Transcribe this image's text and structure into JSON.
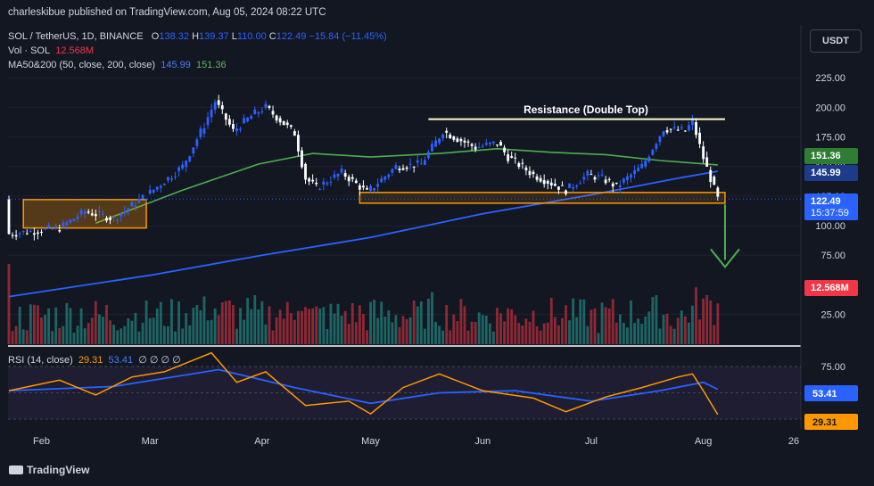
{
  "publisher": "charleskibue published on TradingView.com, Aug 05, 2024 08:22 UTC",
  "legend": {
    "symbol": "SOL / TetherUS, 1D, BINANCE",
    "o_label": "O",
    "o": "138.32",
    "h_label": "H",
    "h": "139.37",
    "l_label": "L",
    "l": "110.00",
    "c_label": "C",
    "c": "122.49",
    "change": "−15.84 (−11.45%)",
    "vol_label": "Vol · SOL",
    "vol": "12.568M",
    "ma_label": "MA50&200 (50, close, 200, close)",
    "ma50": "145.99",
    "ma200": "151.36"
  },
  "currency_button": "USDT",
  "annotation": "Resistance (Double Top)",
  "price_tags": {
    "ma200": "151.36",
    "ma50": "145.99",
    "last": "122.49",
    "countdown": "15:37:59",
    "volume": "12.568M"
  },
  "rsi_legend": {
    "label": "RSI (14, close)",
    "rsi": "29.31",
    "ma": "53.41",
    "extra": "∅ ∅ ∅ ∅"
  },
  "rsi_tags": {
    "ma": "53.41",
    "rsi": "29.31"
  },
  "brand": "TradingView",
  "colors": {
    "up": "#26a69a",
    "down": "#f23645",
    "candle_up": "#2962ff",
    "ma50": "#2962ff",
    "ma200": "#4caf50",
    "rsi": "#ff9800",
    "rsi_ma": "#2962ff",
    "box": "#ff9800",
    "resistance": "#ffffcc",
    "arrow": "#4caf50"
  },
  "chart_data": {
    "type": "candlestick",
    "price_axis_ticks": [
      "225.00",
      "200.00",
      "175.00",
      "150.00",
      "125.00",
      "100.00",
      "75.00",
      "25.00"
    ],
    "rsi_axis_ticks": [
      "75.00",
      "25.00"
    ],
    "x_ticks": [
      "Feb",
      "Mar",
      "Apr",
      "May",
      "Jun",
      "Jul",
      "Aug",
      "26"
    ],
    "ylim": [
      20,
      240
    ],
    "close_path": [
      {
        "d": "2024-01-22",
        "v": 93
      },
      {
        "d": "2024-02-05",
        "v": 98
      },
      {
        "d": "2024-02-12",
        "v": 112
      },
      {
        "d": "2024-02-20",
        "v": 106
      },
      {
        "d": "2024-03-01",
        "v": 128
      },
      {
        "d": "2024-03-10",
        "v": 150
      },
      {
        "d": "2024-03-16",
        "v": 185
      },
      {
        "d": "2024-03-19",
        "v": 205
      },
      {
        "d": "2024-03-24",
        "v": 180
      },
      {
        "d": "2024-03-30",
        "v": 195
      },
      {
        "d": "2024-04-02",
        "v": 200
      },
      {
        "d": "2024-04-10",
        "v": 178
      },
      {
        "d": "2024-04-13",
        "v": 140
      },
      {
        "d": "2024-04-16",
        "v": 132
      },
      {
        "d": "2024-04-23",
        "v": 145
      },
      {
        "d": "2024-04-30",
        "v": 128
      },
      {
        "d": "2024-05-08",
        "v": 150
      },
      {
        "d": "2024-05-15",
        "v": 152
      },
      {
        "d": "2024-05-21",
        "v": 180
      },
      {
        "d": "2024-05-24",
        "v": 175
      },
      {
        "d": "2024-05-30",
        "v": 166
      },
      {
        "d": "2024-06-05",
        "v": 170
      },
      {
        "d": "2024-06-08",
        "v": 158
      },
      {
        "d": "2024-06-15",
        "v": 143
      },
      {
        "d": "2024-06-24",
        "v": 130
      },
      {
        "d": "2024-06-30",
        "v": 143
      },
      {
        "d": "2024-07-04",
        "v": 140
      },
      {
        "d": "2024-07-08",
        "v": 133
      },
      {
        "d": "2024-07-15",
        "v": 150
      },
      {
        "d": "2024-07-21",
        "v": 182
      },
      {
        "d": "2024-07-27",
        "v": 180
      },
      {
        "d": "2024-07-29",
        "v": 188
      },
      {
        "d": "2024-08-01",
        "v": 157
      },
      {
        "d": "2024-08-05",
        "v": 122.49
      }
    ],
    "ma50_path": [
      {
        "d": "2024-01-22",
        "v": 40
      },
      {
        "d": "2024-03-01",
        "v": 58
      },
      {
        "d": "2024-04-01",
        "v": 75
      },
      {
        "d": "2024-05-01",
        "v": 90
      },
      {
        "d": "2024-06-01",
        "v": 110
      },
      {
        "d": "2024-07-01",
        "v": 126
      },
      {
        "d": "2024-07-25",
        "v": 140
      },
      {
        "d": "2024-08-05",
        "v": 145.99
      }
    ],
    "ma200_path": [
      {
        "d": "2024-02-15",
        "v": 102
      },
      {
        "d": "2024-03-10",
        "v": 130
      },
      {
        "d": "2024-03-31",
        "v": 152
      },
      {
        "d": "2024-04-15",
        "v": 161
      },
      {
        "d": "2024-05-01",
        "v": 158
      },
      {
        "d": "2024-05-20",
        "v": 161
      },
      {
        "d": "2024-06-05",
        "v": 165
      },
      {
        "d": "2024-06-20",
        "v": 162
      },
      {
        "d": "2024-07-05",
        "v": 160
      },
      {
        "d": "2024-07-20",
        "v": 155
      },
      {
        "d": "2024-08-05",
        "v": 151.36
      }
    ],
    "resistance": {
      "from": "2024-05-17",
      "to": "2024-08-07",
      "price": 190
    },
    "support_zone": {
      "from": "2024-04-28",
      "to": "2024-08-07",
      "low": 119,
      "high": 128
    },
    "accumulation_box": {
      "from": "2024-01-26",
      "to": "2024-02-29",
      "low": 98,
      "high": 122
    },
    "target_arrow": {
      "date": "2024-08-07",
      "from": 118,
      "to": 65
    },
    "rsi_path": [
      {
        "d": "2024-01-22",
        "v": 52
      },
      {
        "d": "2024-02-05",
        "v": 62
      },
      {
        "d": "2024-02-15",
        "v": 48
      },
      {
        "d": "2024-02-25",
        "v": 65
      },
      {
        "d": "2024-03-05",
        "v": 70
      },
      {
        "d": "2024-03-18",
        "v": 88
      },
      {
        "d": "2024-03-25",
        "v": 60
      },
      {
        "d": "2024-04-02",
        "v": 70
      },
      {
        "d": "2024-04-13",
        "v": 38
      },
      {
        "d": "2024-04-25",
        "v": 42
      },
      {
        "d": "2024-05-01",
        "v": 30
      },
      {
        "d": "2024-05-10",
        "v": 55
      },
      {
        "d": "2024-05-20",
        "v": 68
      },
      {
        "d": "2024-06-01",
        "v": 52
      },
      {
        "d": "2024-06-15",
        "v": 45
      },
      {
        "d": "2024-06-24",
        "v": 32
      },
      {
        "d": "2024-07-05",
        "v": 46
      },
      {
        "d": "2024-07-15",
        "v": 55
      },
      {
        "d": "2024-07-25",
        "v": 65
      },
      {
        "d": "2024-07-29",
        "v": 68
      },
      {
        "d": "2024-08-01",
        "v": 52
      },
      {
        "d": "2024-08-05",
        "v": 29.31
      }
    ],
    "rsi_ma_path": [
      {
        "d": "2024-01-22",
        "v": 52
      },
      {
        "d": "2024-02-20",
        "v": 56
      },
      {
        "d": "2024-03-20",
        "v": 72
      },
      {
        "d": "2024-04-10",
        "v": 55
      },
      {
        "d": "2024-05-01",
        "v": 40
      },
      {
        "d": "2024-05-20",
        "v": 50
      },
      {
        "d": "2024-06-10",
        "v": 52
      },
      {
        "d": "2024-07-01",
        "v": 42
      },
      {
        "d": "2024-07-20",
        "v": 52
      },
      {
        "d": "2024-08-01",
        "v": 60
      },
      {
        "d": "2024-08-05",
        "v": 53.41
      }
    ]
  }
}
